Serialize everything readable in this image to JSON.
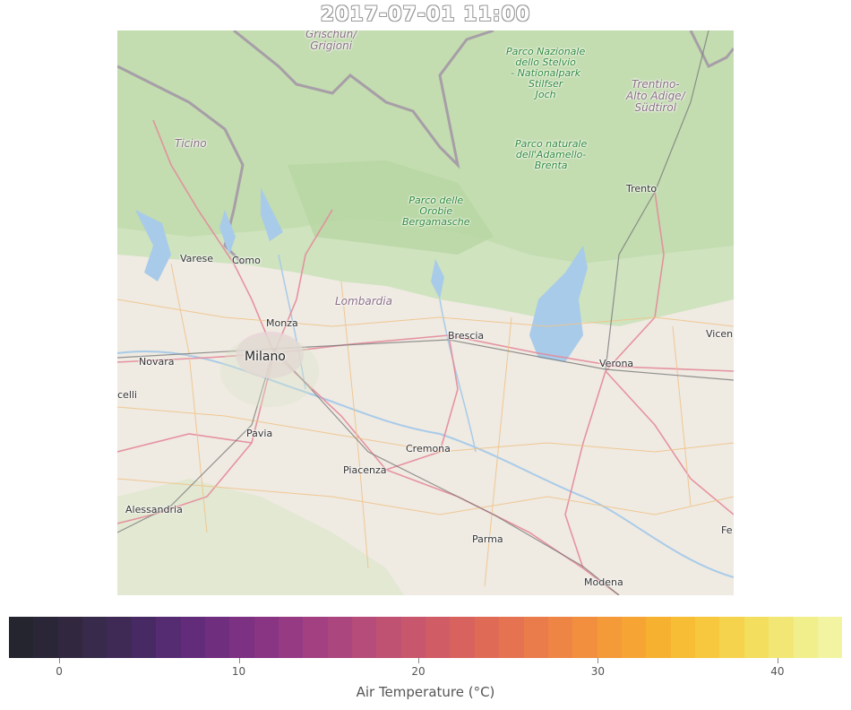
{
  "title": "2017-07-01 11:00",
  "map": {
    "cities": [
      {
        "name": "Varese",
        "size": "small"
      },
      {
        "name": "Como",
        "size": "small"
      },
      {
        "name": "Monza",
        "size": "small"
      },
      {
        "name": "Milano",
        "size": "big"
      },
      {
        "name": "Novara",
        "size": "small"
      },
      {
        "name": "celli",
        "size": "small"
      },
      {
        "name": "Pavia",
        "size": "small"
      },
      {
        "name": "Brescia",
        "size": "small"
      },
      {
        "name": "Cremona",
        "size": "small"
      },
      {
        "name": "Piacenza",
        "size": "small"
      },
      {
        "name": "Alessandria",
        "size": "small"
      },
      {
        "name": "Parma",
        "size": "small"
      },
      {
        "name": "Modena",
        "size": "small"
      },
      {
        "name": "Verona",
        "size": "small"
      },
      {
        "name": "Trento",
        "size": "small"
      },
      {
        "name": "Vicen",
        "size": "small"
      },
      {
        "name": "Fe",
        "size": "small"
      }
    ],
    "regions": {
      "grigioni": [
        "Grischun/",
        "Grigioni"
      ],
      "ticino": [
        "Ticino"
      ],
      "lombardia": [
        "Lombardia"
      ],
      "trentino": [
        "Trentino-",
        "Alto Adige/",
        "Südtirol"
      ]
    },
    "parks": {
      "stelvio": [
        "Parco Nazionale",
        "dello Stelvio",
        "- Nationalpark",
        "Stilfser",
        "Joch"
      ],
      "adamello": [
        "Parco naturale",
        "dell'Adamello-",
        "Brenta"
      ],
      "orobie": [
        "Parco delle",
        "Orobie",
        "Bergamasche"
      ]
    }
  },
  "colorbar": {
    "label": "Air Temperature (°C)",
    "min": -2.8,
    "max": 43.6,
    "ticks": [
      0,
      10,
      20,
      30,
      40
    ],
    "colors": [
      "#25252f",
      "#2a2637",
      "#31283f",
      "#382a4a",
      "#3f2a56",
      "#472a63",
      "#552b72",
      "#632c7a",
      "#702e7f",
      "#7d3182",
      "#893584",
      "#963a84",
      "#a24082",
      "#ac467e",
      "#b54c79",
      "#bf5173",
      "#c8566c",
      "#d05c65",
      "#d8635e",
      "#df6b57",
      "#e57351",
      "#ea7c4b",
      "#ee8545",
      "#f18f3f",
      "#f49a39",
      "#f6a534",
      "#f7b131",
      "#f7bd34",
      "#f7c83d",
      "#f5d34c",
      "#f3de5e",
      "#f2e774",
      "#f1ef8c",
      "#f2f4a2"
    ]
  }
}
